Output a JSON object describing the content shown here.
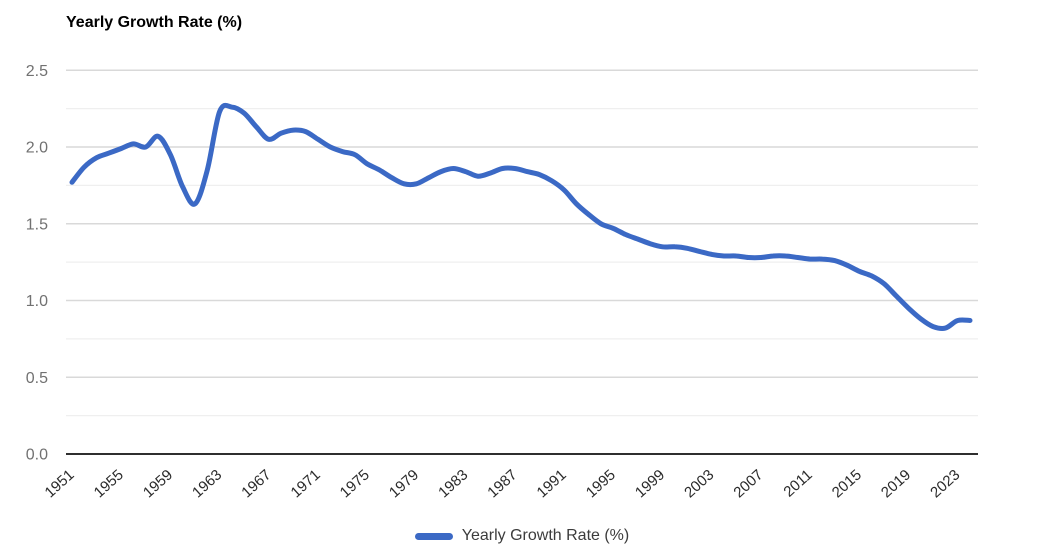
{
  "chart": {
    "title": "Yearly Growth Rate (%)",
    "legend": {
      "label": "Yearly Growth Rate (%)"
    },
    "colors": {
      "line": "#3B69C5",
      "grid_major": "#d9d9d9",
      "grid_minor": "#efefef",
      "zero_axis": "#2f2f2f",
      "y_tick_text": "#717171",
      "x_tick_text": "#2b2b2b",
      "title_text": "#000000",
      "legend_text": "#3c3c3c",
      "background": "#ffffff"
    }
  },
  "chart_data": {
    "type": "line",
    "title": "Yearly Growth Rate (%)",
    "xlabel": "",
    "ylabel": "",
    "ylim": [
      0.0,
      2.5
    ],
    "yticks": [
      0.0,
      0.5,
      1.0,
      1.5,
      2.0,
      2.5
    ],
    "ytick_labels": [
      "0.0",
      "0.5",
      "1.0",
      "1.5",
      "2.0",
      "2.5"
    ],
    "minor_yticks": [
      0.25,
      0.75,
      1.25,
      1.75,
      2.25
    ],
    "xticks": [
      1951,
      1955,
      1959,
      1963,
      1967,
      1971,
      1975,
      1979,
      1983,
      1987,
      1991,
      1995,
      1999,
      2003,
      2007,
      2011,
      2015,
      2019,
      2023
    ],
    "grid": true,
    "smooth": true,
    "legend_position": "bottom",
    "x": [
      1951,
      1952,
      1953,
      1954,
      1955,
      1956,
      1957,
      1958,
      1959,
      1960,
      1961,
      1962,
      1963,
      1964,
      1965,
      1966,
      1967,
      1968,
      1969,
      1970,
      1971,
      1972,
      1973,
      1974,
      1975,
      1976,
      1977,
      1978,
      1979,
      1980,
      1981,
      1982,
      1983,
      1984,
      1985,
      1986,
      1987,
      1988,
      1989,
      1990,
      1991,
      1992,
      1993,
      1994,
      1995,
      1996,
      1997,
      1998,
      1999,
      2000,
      2001,
      2002,
      2003,
      2004,
      2005,
      2006,
      2007,
      2008,
      2009,
      2010,
      2011,
      2012,
      2013,
      2014,
      2015,
      2016,
      2017,
      2018,
      2019,
      2020,
      2021,
      2022,
      2023,
      2024
    ],
    "series": [
      {
        "name": "Yearly Growth Rate (%)",
        "values": [
          1.77,
          1.87,
          1.93,
          1.96,
          1.99,
          2.02,
          2.0,
          2.07,
          1.95,
          1.74,
          1.63,
          1.85,
          2.23,
          2.26,
          2.22,
          2.13,
          2.05,
          2.09,
          2.11,
          2.1,
          2.05,
          2.0,
          1.97,
          1.95,
          1.89,
          1.85,
          1.8,
          1.76,
          1.76,
          1.8,
          1.84,
          1.86,
          1.84,
          1.81,
          1.83,
          1.86,
          1.86,
          1.84,
          1.82,
          1.78,
          1.72,
          1.63,
          1.56,
          1.5,
          1.47,
          1.43,
          1.4,
          1.37,
          1.35,
          1.35,
          1.34,
          1.32,
          1.3,
          1.29,
          1.29,
          1.28,
          1.28,
          1.29,
          1.29,
          1.28,
          1.27,
          1.27,
          1.26,
          1.23,
          1.19,
          1.16,
          1.11,
          1.03,
          0.95,
          0.88,
          0.83,
          0.82,
          0.87,
          0.87
        ]
      }
    ]
  }
}
